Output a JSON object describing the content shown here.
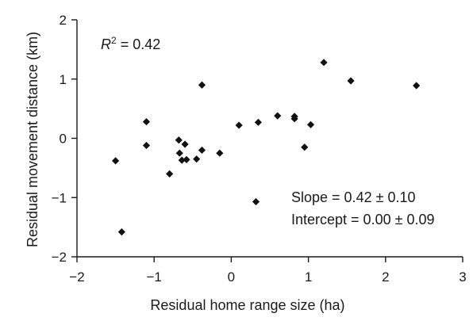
{
  "chart_data": {
    "type": "scatter",
    "title": "",
    "xlabel": "Residual home range size (ha)",
    "ylabel": "Residual movement distance (km)",
    "xlim": [
      -2,
      3
    ],
    "ylim": [
      -2,
      2
    ],
    "x_ticks": [
      "−2",
      "−1",
      "0",
      "1",
      "2",
      "3"
    ],
    "y_ticks": [
      "2",
      "1",
      "0",
      "−1",
      "−2"
    ],
    "grid": false,
    "annotations": {
      "r2_symbol": "R",
      "r2_sup": "2",
      "r2_value": " = 0.42",
      "slope": "Slope = 0.42 ± 0.10",
      "intercept": "Intercept = 0.00 ± 0.09"
    },
    "series": [
      {
        "points": [
          {
            "x": -1.5,
            "y": -0.38
          },
          {
            "x": -1.42,
            "y": -1.58
          },
          {
            "x": -1.1,
            "y": 0.28
          },
          {
            "x": -1.1,
            "y": -0.12
          },
          {
            "x": -0.8,
            "y": -0.6
          },
          {
            "x": -0.68,
            "y": -0.03
          },
          {
            "x": -0.67,
            "y": -0.25
          },
          {
            "x": -0.64,
            "y": -0.37
          },
          {
            "x": -0.6,
            "y": -0.1
          },
          {
            "x": -0.58,
            "y": -0.36
          },
          {
            "x": -0.45,
            "y": -0.35
          },
          {
            "x": -0.38,
            "y": -0.2
          },
          {
            "x": -0.38,
            "y": 0.9
          },
          {
            "x": -0.15,
            "y": -0.25
          },
          {
            "x": 0.1,
            "y": 0.22
          },
          {
            "x": 0.32,
            "y": -1.07
          },
          {
            "x": 0.35,
            "y": 0.27
          },
          {
            "x": 0.6,
            "y": 0.38
          },
          {
            "x": 0.82,
            "y": 0.37
          },
          {
            "x": 0.82,
            "y": 0.33
          },
          {
            "x": 0.95,
            "y": -0.15
          },
          {
            "x": 1.03,
            "y": 0.23
          },
          {
            "x": 1.2,
            "y": 1.28
          },
          {
            "x": 1.55,
            "y": 0.97
          },
          {
            "x": 2.4,
            "y": 0.89
          }
        ]
      }
    ]
  }
}
